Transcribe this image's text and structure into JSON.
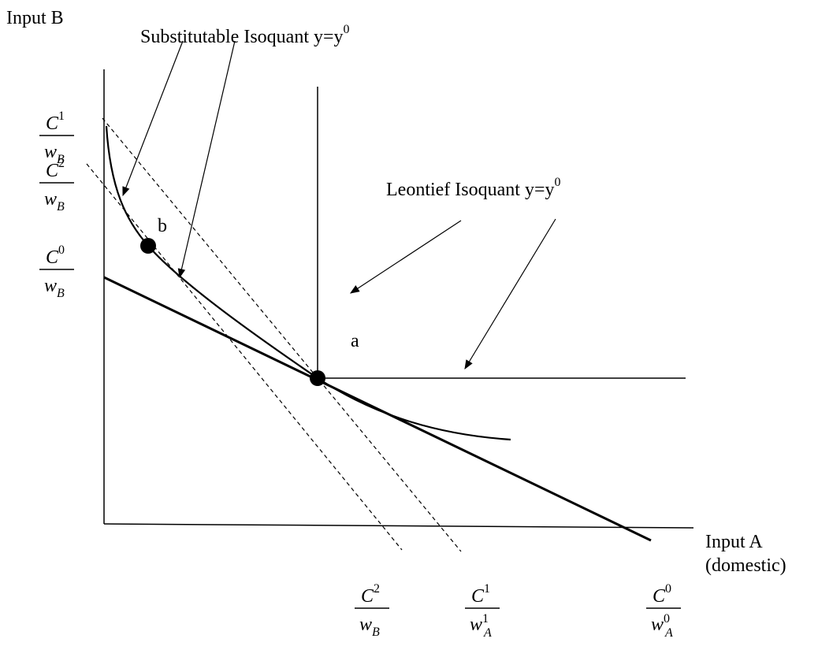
{
  "axes": {
    "y_label": "Input B",
    "x_label": [
      "Input A",
      "(domestic)"
    ]
  },
  "annotations": {
    "substitutable": {
      "text": "Substitutable Isoquant y=y",
      "sup": "0"
    },
    "leontief": {
      "text": "Leontief Isoquant y=y",
      "sup": "0"
    },
    "point_a": "a",
    "point_b": "b"
  },
  "y_fractions": [
    {
      "num": "C",
      "num_sup": "1",
      "den": "w",
      "den_sub": "B"
    },
    {
      "num": "C",
      "num_sup": "2",
      "den": "w",
      "den_sub": "B"
    },
    {
      "num": "C",
      "num_sup": "0",
      "den": "w",
      "den_sub": "B"
    }
  ],
  "x_fractions": [
    {
      "num": "C",
      "num_sup": "2",
      "den": "w",
      "den_sub": "B"
    },
    {
      "num": "C",
      "num_sup": "1",
      "den": "w",
      "den_sub": "A",
      "den_sup": "1"
    },
    {
      "num": "C",
      "num_sup": "0",
      "den": "w",
      "den_sub": "A",
      "den_sup": "0"
    }
  ]
}
